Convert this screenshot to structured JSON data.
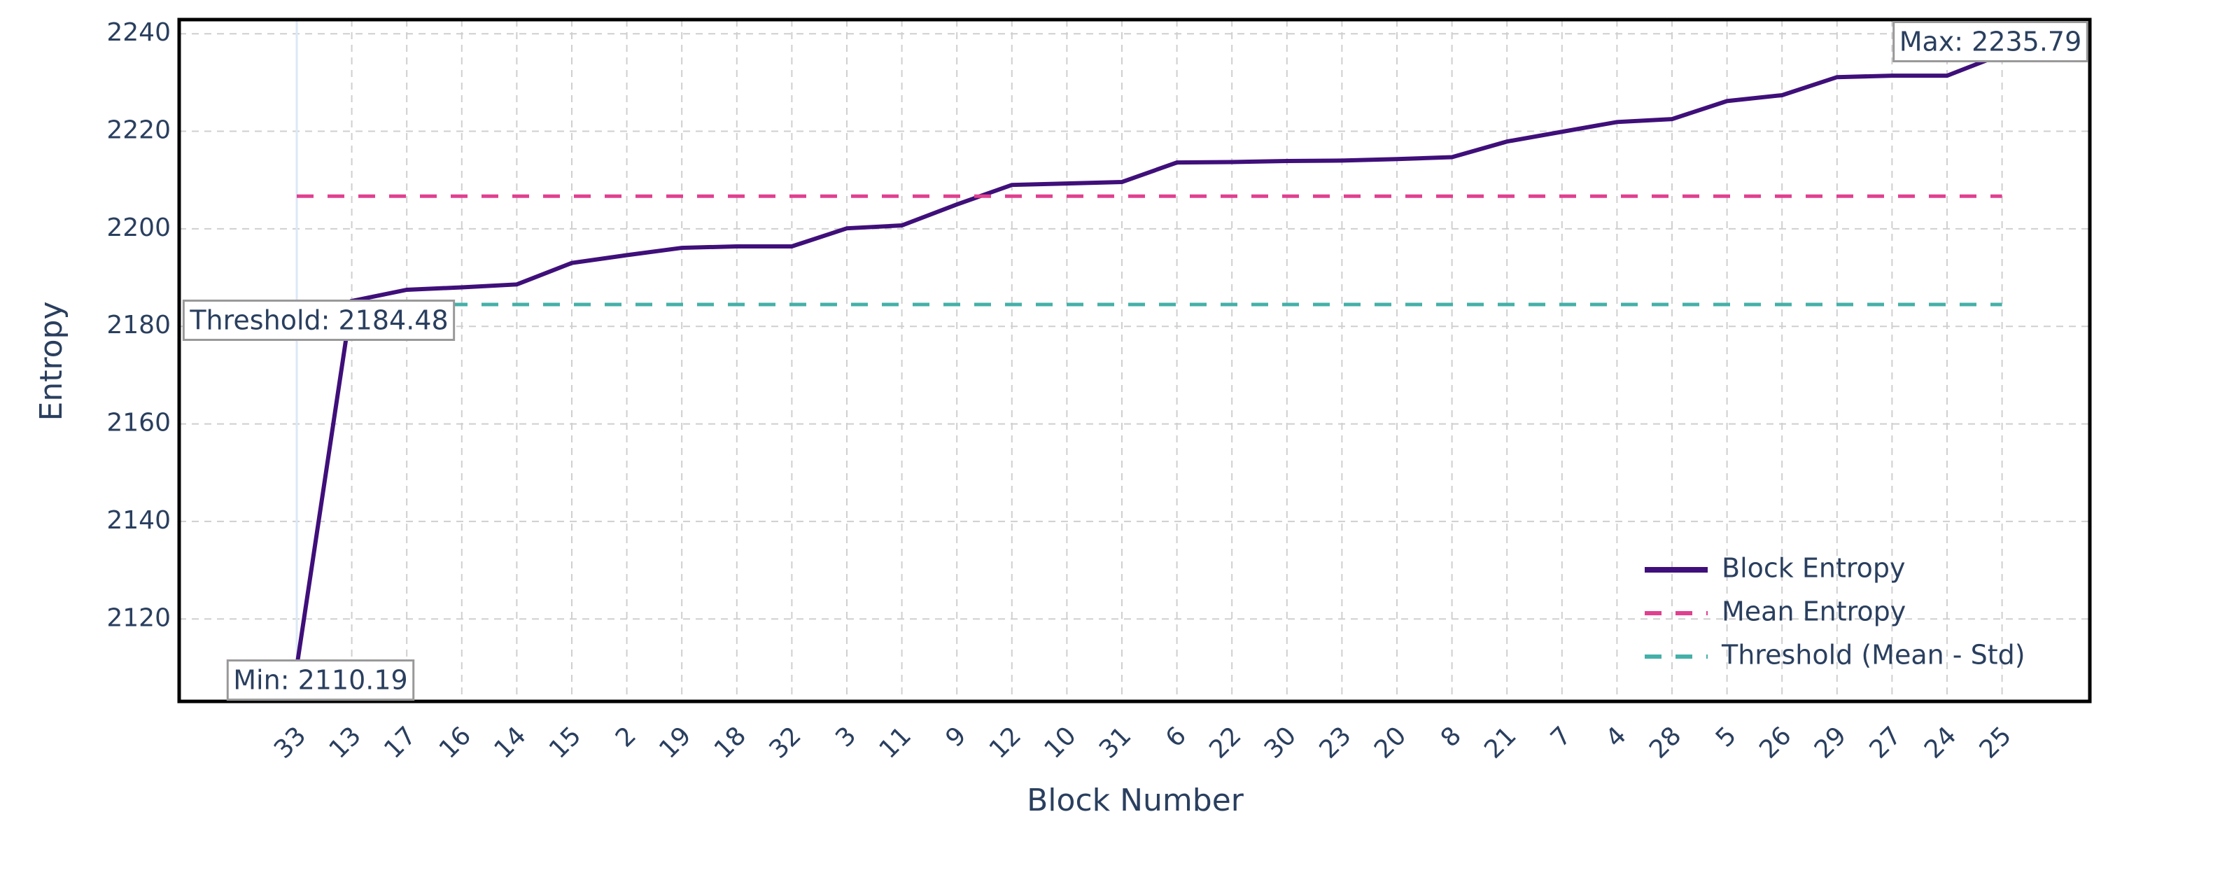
{
  "chart_data": {
    "type": "line",
    "x_label": "Block Number",
    "y_label": "Entropy",
    "categories": [
      "33",
      "13",
      "17",
      "16",
      "14",
      "15",
      "2",
      "19",
      "18",
      "32",
      "3",
      "11",
      "9",
      "12",
      "10",
      "31",
      "6",
      "22",
      "30",
      "23",
      "20",
      "8",
      "21",
      "7",
      "4",
      "28",
      "5",
      "26",
      "29",
      "27",
      "24",
      "25"
    ],
    "series": [
      {
        "name": "Block Entropy",
        "color": "#3f0f7a",
        "values": [
          2110.19,
          2185.2,
          2187.5,
          2188,
          2188.6,
          2193,
          2194.6,
          2196.1,
          2196.4,
          2196.4,
          2200.1,
          2200.7,
          2205,
          2209,
          2209.3,
          2209.6,
          2213.6,
          2213.7,
          2213.9,
          2214,
          2214.3,
          2214.7,
          2217.9,
          2219.9,
          2221.9,
          2222.5,
          2226.2,
          2227.4,
          2231.1,
          2231.4,
          2231.4,
          2235.79
        ]
      },
      {
        "name": "Mean Entropy",
        "color": "#e0408f",
        "dash": true,
        "value": 2206.7
      },
      {
        "name": "Threshold (Mean - Std)",
        "color": "#45b0a8",
        "dash": true,
        "value": 2184.48
      }
    ],
    "annotations": [
      "Min: 2110.19",
      "Threshold: 2184.48",
      "Max: 2235.79"
    ],
    "ylim": [
      2103.1,
      2242.9
    ],
    "yticks": [
      2120,
      2140,
      2160,
      2180,
      2200,
      2220,
      2240
    ],
    "grid": true,
    "legend": "bottom-right"
  }
}
